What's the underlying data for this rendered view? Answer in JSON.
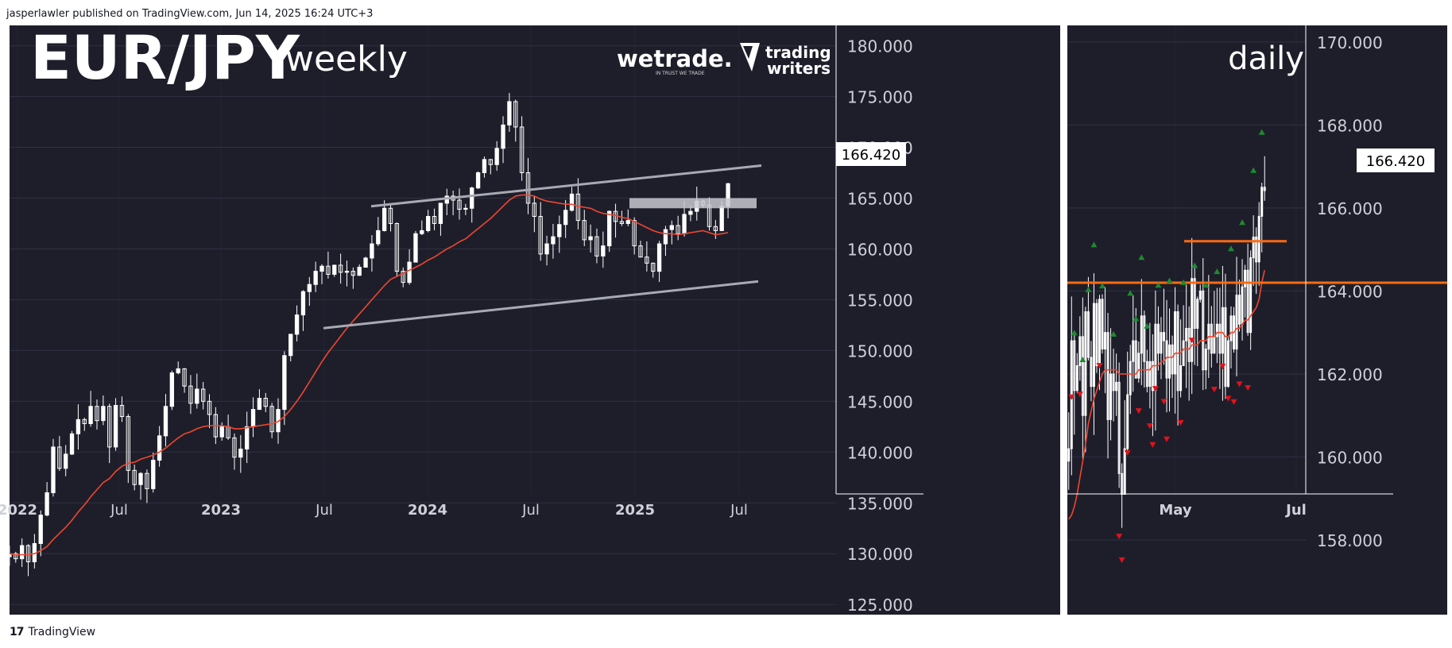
{
  "header": {
    "publisher": "jasperlawler published on TradingView.com, Jun 14, 2025 16:24 UTC+3"
  },
  "footer": {
    "logo_text": "TradingView"
  },
  "colors": {
    "background": "#1e1e2b",
    "grid": "#2f3140",
    "candle": "#ffffff",
    "ma": "#f0462d",
    "channel": "#a8aab3",
    "level": "#ff6a13",
    "up_arrow": "#1e8a2f",
    "down_arrow": "#e0131a",
    "axis_text": "#cfd1d8"
  },
  "branding": {
    "wetrade": "wetrade.",
    "wetrade_tagline": "IN TRUST WE TRADE",
    "tw_line1": "trading",
    "tw_line2": "writers"
  },
  "chart_data": [
    {
      "type": "candlestick",
      "title": "EUR/JPY",
      "subtitle": "weekly",
      "ylim": [
        124,
        182
      ],
      "y_ticks": [
        "180.000",
        "175.000",
        "170.000",
        "165.000",
        "160.000",
        "155.000",
        "150.000",
        "145.000",
        "140.000",
        "135.000",
        "130.000",
        "125.000"
      ],
      "x_ticks": [
        "2022",
        "Jul",
        "2023",
        "Jul",
        "2024",
        "Jul",
        "2025",
        "Jul"
      ],
      "x_tick_bold": [
        true,
        false,
        true,
        false,
        true,
        false,
        true,
        false
      ],
      "last_price": "166.420",
      "grid": true,
      "closes": [
        130.0,
        129.5,
        130.8,
        129.2,
        131.0,
        133.8,
        136.0,
        140.5,
        138.4,
        139.8,
        141.8,
        143.2,
        142.8,
        144.5,
        143.1,
        144.5,
        140.5,
        144.6,
        143.5,
        138.2,
        136.8,
        137.9,
        136.4,
        139.2,
        141.6,
        144.5,
        147.8,
        148.2,
        146.5,
        144.8,
        146.2,
        145.0,
        143.7,
        141.5,
        142.5,
        141.4,
        139.5,
        140.3,
        142.5,
        144.2,
        145.3,
        144.5,
        142.0,
        144.2,
        149.5,
        151.6,
        153.5,
        155.8,
        156.5,
        157.8,
        158.3,
        157.5,
        158.4,
        157.7,
        157.8,
        157.4,
        158.2,
        159.1,
        160.5,
        161.8,
        164.0,
        162.5,
        157.8,
        156.7,
        158.7,
        161.5,
        161.8,
        163.2,
        162.5,
        164.5,
        165.2,
        164.8,
        163.9,
        164.0,
        166.0,
        167.5,
        168.8,
        168.3,
        169.9,
        172.2,
        174.5,
        172.0,
        167.5,
        164.5,
        163.2,
        159.5,
        160.5,
        161.2,
        162.4,
        163.8,
        165.4,
        162.8,
        160.9,
        161.2,
        159.3,
        160.3,
        163.7,
        162.7,
        162.5,
        162.8,
        160.3,
        159.2,
        158.6,
        157.8,
        160.5,
        161.9,
        162.3,
        161.5,
        163.4,
        163.7,
        164.7,
        164.3,
        162.2,
        161.8,
        164.2,
        166.42
      ],
      "ma_values": [
        130.0,
        129.9,
        129.9,
        129.9,
        130.0,
        130.3,
        130.7,
        131.4,
        132.0,
        132.6,
        133.3,
        134.1,
        134.8,
        135.6,
        136.3,
        137.0,
        137.4,
        138.1,
        138.6,
        138.9,
        139.0,
        139.3,
        139.5,
        139.7,
        140.0,
        140.4,
        140.9,
        141.4,
        141.8,
        142.0,
        142.3,
        142.5,
        142.6,
        142.6,
        142.6,
        142.5,
        142.3,
        142.3,
        142.4,
        142.5,
        142.6,
        142.7,
        142.8,
        143.0,
        143.5,
        144.2,
        145.0,
        145.9,
        146.9,
        147.9,
        148.9,
        149.8,
        150.6,
        151.4,
        152.2,
        152.9,
        153.6,
        154.3,
        155.0,
        155.7,
        156.4,
        157.0,
        157.3,
        157.6,
        157.9,
        158.2,
        158.5,
        158.9,
        159.2,
        159.6,
        160.0,
        160.3,
        160.7,
        161.0,
        161.5,
        162.0,
        162.5,
        163.0,
        163.6,
        164.2,
        164.8,
        165.2,
        165.3,
        165.3,
        165.2,
        164.9,
        164.7,
        164.6,
        164.5,
        164.4,
        164.4,
        164.2,
        164.1,
        164.0,
        163.7,
        163.5,
        163.4,
        163.3,
        163.1,
        163.0,
        162.7,
        162.4,
        162.1,
        161.8,
        161.6,
        161.5,
        161.5,
        161.4,
        161.5,
        161.6,
        161.7,
        161.8,
        161.6,
        161.4,
        161.5,
        161.6
      ],
      "channel": [
        {
          "from": [
            "2023-08",
            152.2
          ],
          "to": [
            "2025-07",
            156.8
          ]
        },
        {
          "from": [
            "2023-11",
            164.2
          ],
          "to": [
            "2025-07",
            168.2
          ]
        }
      ],
      "resistance_zone": [
        164.0,
        165.0
      ]
    },
    {
      "type": "candlestick",
      "subtitle": "daily",
      "ylim": [
        156.2,
        170.4
      ],
      "y_ticks": [
        "170.000",
        "168.000",
        "166.000",
        "164.000",
        "162.000",
        "160.000",
        "158.000"
      ],
      "x_ticks": [
        "May",
        "Jul"
      ],
      "last_price": "166.420",
      "grid": true,
      "closes": [
        160.2,
        162.8,
        161.6,
        162.2,
        162.9,
        161.0,
        163.5,
        162.4,
        161.7,
        163.7,
        162.2,
        163.8,
        162.6,
        163.0,
        160.9,
        162.0,
        161.6,
        161.8,
        159.6,
        159.1,
        160.2,
        161.5,
        162.3,
        162.8,
        161.9,
        162.5,
        163.4,
        162.3,
        161.7,
        162.3,
        161.6,
        163.2,
        162.5,
        163.0,
        162.8,
        161.9,
        162.7,
        162.0,
        163.5,
        161.6,
        162.2,
        162.8,
        163.1,
        162.3,
        164.3,
        163.1,
        163.8,
        164.0,
        162.1,
        162.6,
        163.2,
        162.5,
        162.9,
        163.2,
        162.5,
        163.6,
        161.7,
        162.8,
        163.4,
        162.6,
        163.9,
        163.2,
        164.1,
        164.5,
        163.0,
        164.8,
        165.3,
        164.7,
        165.8,
        166.5,
        166.42
      ],
      "ma_values": [
        158.5,
        158.6,
        158.8,
        159.1,
        159.5,
        159.9,
        160.3,
        160.8,
        161.1,
        161.4,
        161.6,
        161.8,
        162.0,
        162.1,
        162.1,
        162.1,
        162.1,
        162.1,
        162.0,
        162.0,
        162.0,
        162.0,
        162.0,
        162.0,
        162.0,
        162.1,
        162.1,
        162.1,
        162.1,
        162.1,
        162.2,
        162.2,
        162.2,
        162.3,
        162.3,
        162.4,
        162.4,
        162.4,
        162.5,
        162.5,
        162.5,
        162.6,
        162.6,
        162.6,
        162.7,
        162.7,
        162.7,
        162.8,
        162.8,
        162.8,
        162.9,
        162.9,
        162.9,
        163.0,
        163.0,
        163.0,
        162.9,
        162.9,
        163.0,
        163.0,
        163.1,
        163.1,
        163.2,
        163.3,
        163.3,
        163.4,
        163.5,
        163.6,
        163.8,
        164.2,
        164.5
      ],
      "levels": [
        164.2,
        165.2
      ],
      "fractal_highs": [
        2,
        5,
        7,
        9,
        12,
        16,
        22,
        24,
        26,
        28,
        32,
        36,
        41,
        45,
        49,
        53,
        58,
        62,
        66,
        69
      ],
      "fractal_lows": [
        1,
        4,
        11,
        18,
        19,
        21,
        25,
        29,
        30,
        31,
        34,
        35,
        40,
        44,
        52,
        55,
        57,
        59,
        61,
        64
      ]
    }
  ]
}
